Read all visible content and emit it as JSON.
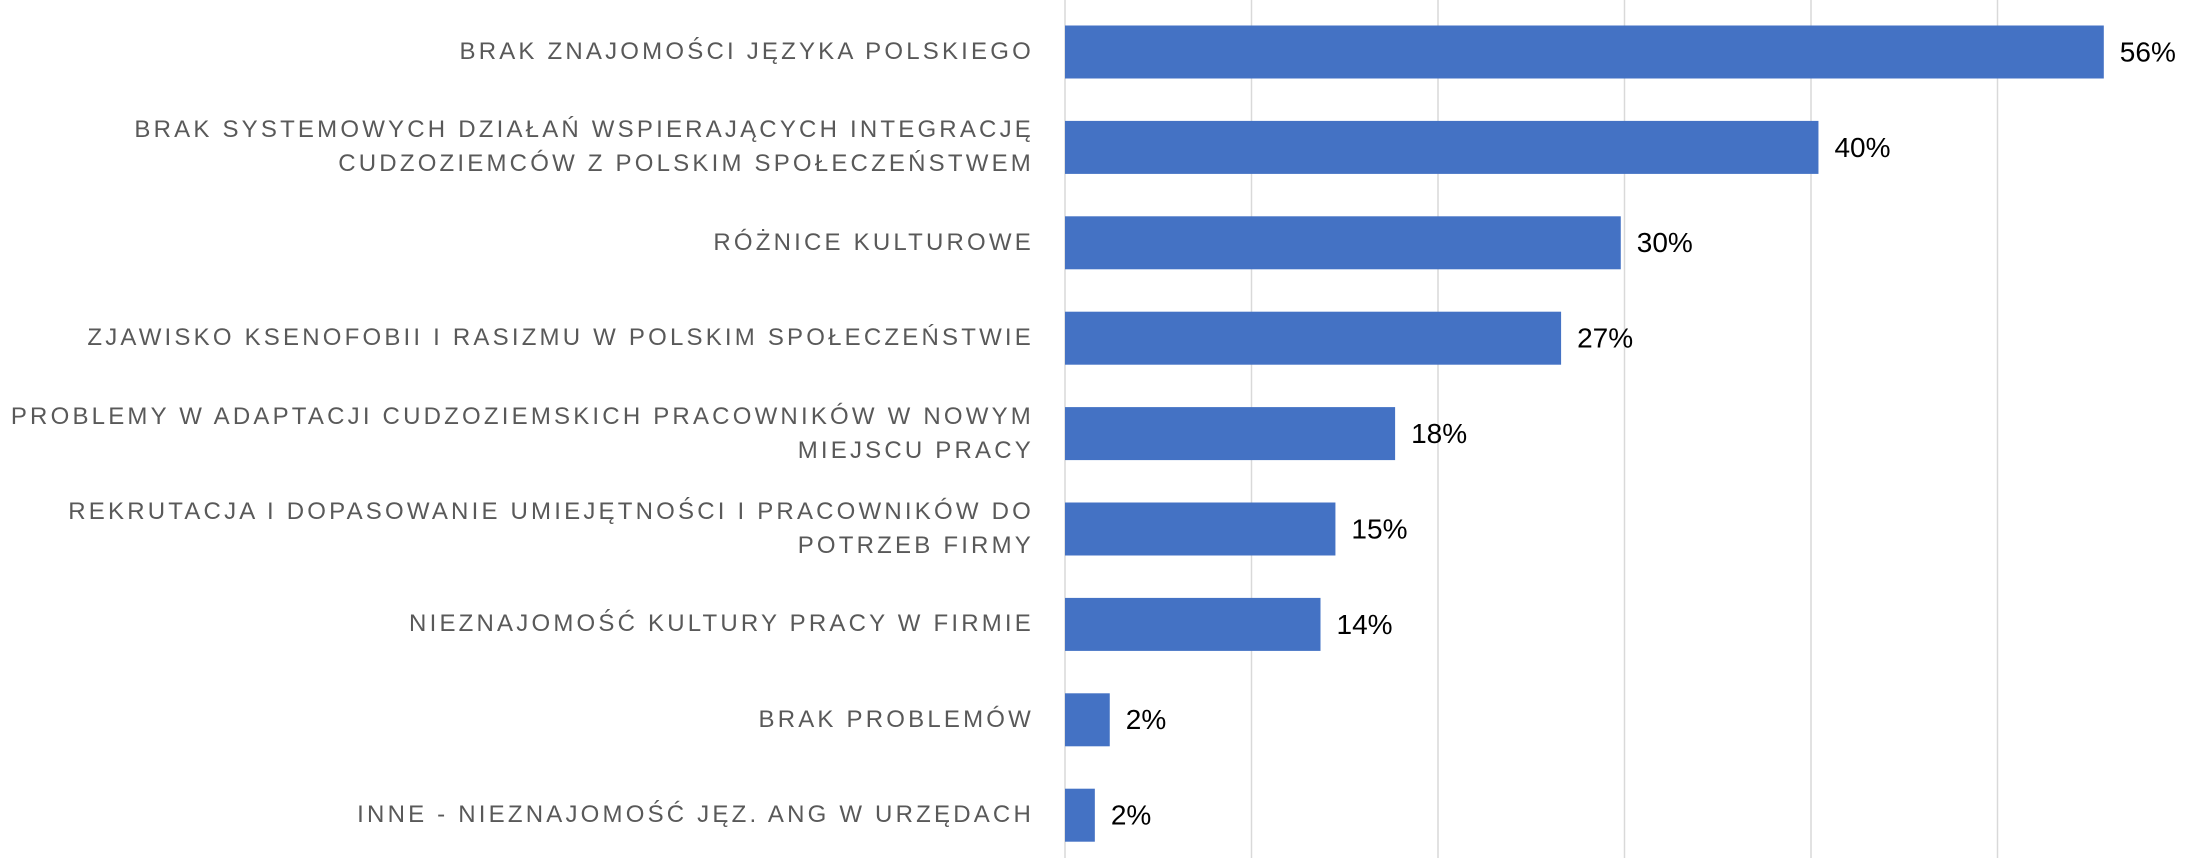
{
  "chart_data": {
    "type": "bar",
    "orientation": "horizontal",
    "categories": [
      "BRAK ZNAJOMOŚCI JĘZYKA POLSKIEGO",
      "BRAK SYSTEMOWYCH DZIAŁAŃ WSPIERAJĄCYCH INTEGRACJĘ\nCUDZOZIEMCÓW Z POLSKIM SPOŁECZEŃSTWEM",
      "RÓŻNICE KULTUROWE",
      "ZJAWISKO KSENOFOBII I RASIZMU W POLSKIM SPOŁECZEŃSTWIE",
      "PROBLEMY W ADAPTACJI CUDZOZIEMSKICH PRACOWNIKÓW W NOWYM\nMIEJSCU PRACY",
      "REKRUTACJA I DOPASOWANIE UMIEJĘTNOŚCI I PRACOWNIKÓW DO\nPOTRZEB FIRMY",
      "NIEZNAJOMOŚĆ KULTURY PRACY W FIRMIE",
      "BRAK PROBLEMÓW",
      "INNE - NIEZNAJOMOŚĆ JĘZ. ANG W URZĘDACH"
    ],
    "values": [
      55.7,
      40.4,
      29.8,
      26.6,
      17.7,
      14.5,
      13.7,
      2.4,
      1.6
    ],
    "value_labels": [
      "56%",
      "40%",
      "30%",
      "27%",
      "18%",
      "15%",
      "14%",
      "2%",
      "2%"
    ],
    "color": "#4472c4",
    "xlim": [
      0,
      60
    ],
    "xticks": [
      0,
      10,
      20,
      30,
      40,
      50
    ],
    "grid": true
  }
}
